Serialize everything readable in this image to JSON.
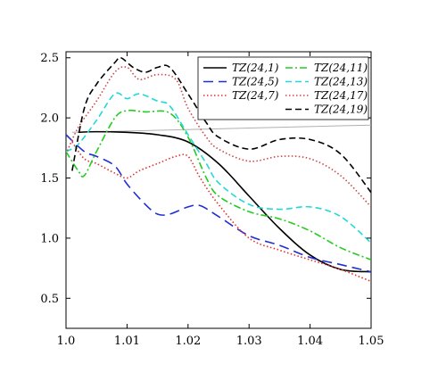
{
  "chart_data": {
    "type": "line",
    "title": "",
    "xlabel": "",
    "ylabel": "",
    "xlim": [
      1.0,
      1.05
    ],
    "ylim": [
      0.25,
      2.55
    ],
    "xticks": [
      1.0,
      1.01,
      1.02,
      1.03,
      1.04,
      1.05
    ],
    "xtick_labels": [
      "1.0",
      "1.01",
      "1.02",
      "1.03",
      "1.04",
      "1.05"
    ],
    "yticks": [
      0.5,
      1.0,
      1.5,
      2.0,
      2.5
    ],
    "ytick_labels": [
      "0.5",
      "1.0",
      "1.5",
      "2.0",
      "2.5"
    ],
    "grid": false,
    "legend_position": "top-right",
    "reference_line": {
      "x": [
        1.001,
        1.05
      ],
      "y": [
        1.88,
        1.94
      ],
      "color": "#b0b0b0"
    },
    "series": [
      {
        "name": "TZ(24,1)",
        "color": "#000000",
        "dash": "solid",
        "x": [
          1.002,
          1.005,
          1.01,
          1.015,
          1.02,
          1.025,
          1.03,
          1.035,
          1.04,
          1.045,
          1.05
        ],
        "y": [
          1.88,
          1.885,
          1.88,
          1.86,
          1.8,
          1.62,
          1.35,
          1.08,
          0.86,
          0.74,
          0.72
        ]
      },
      {
        "name": "TZ(24,5)",
        "color": "#1f2fd0",
        "dash": "long-dash",
        "x": [
          1.0,
          1.003,
          1.005,
          1.008,
          1.01,
          1.013,
          1.015,
          1.017,
          1.02,
          1.022,
          1.025,
          1.03,
          1.035,
          1.04,
          1.045,
          1.05
        ],
        "y": [
          1.86,
          1.72,
          1.68,
          1.6,
          1.45,
          1.28,
          1.2,
          1.2,
          1.26,
          1.27,
          1.18,
          1.02,
          0.94,
          0.84,
          0.78,
          0.72
        ]
      },
      {
        "name": "TZ(24,7)",
        "color": "#e03030",
        "dash": "dotted",
        "x": [
          1.001,
          1.003,
          1.005,
          1.008,
          1.01,
          1.012,
          1.015,
          1.018,
          1.02,
          1.022,
          1.025,
          1.03,
          1.035,
          1.04,
          1.045,
          1.05
        ],
        "y": [
          1.8,
          1.66,
          1.62,
          1.54,
          1.5,
          1.56,
          1.62,
          1.68,
          1.68,
          1.5,
          1.28,
          1.0,
          0.9,
          0.82,
          0.74,
          0.64
        ]
      },
      {
        "name": "TZ(24,11)",
        "color": "#22cc22",
        "dash": "dash-dot",
        "x": [
          1.0,
          1.002,
          1.003,
          1.005,
          1.008,
          1.01,
          1.013,
          1.017,
          1.02,
          1.023,
          1.025,
          1.03,
          1.035,
          1.04,
          1.045,
          1.05
        ],
        "y": [
          1.72,
          1.56,
          1.52,
          1.72,
          2.0,
          2.06,
          2.05,
          2.04,
          1.84,
          1.5,
          1.35,
          1.22,
          1.16,
          1.06,
          0.92,
          0.82
        ]
      },
      {
        "name": "TZ(24,13)",
        "color": "#22d8d8",
        "dash": "dashed",
        "x": [
          1.0,
          1.002,
          1.005,
          1.008,
          1.01,
          1.012,
          1.015,
          1.017,
          1.02,
          1.023,
          1.025,
          1.03,
          1.035,
          1.04,
          1.045,
          1.05
        ],
        "y": [
          1.72,
          1.78,
          1.98,
          2.2,
          2.16,
          2.2,
          2.14,
          2.1,
          1.86,
          1.62,
          1.46,
          1.28,
          1.24,
          1.26,
          1.18,
          0.96
        ]
      },
      {
        "name": "TZ(24,17)",
        "color": "#c84848",
        "dash": "dotted",
        "x": [
          1.0,
          1.002,
          1.005,
          1.008,
          1.01,
          1.012,
          1.015,
          1.018,
          1.02,
          1.023,
          1.025,
          1.03,
          1.035,
          1.04,
          1.045,
          1.05
        ],
        "y": [
          1.7,
          1.92,
          2.14,
          2.38,
          2.42,
          2.32,
          2.36,
          2.32,
          2.08,
          1.84,
          1.74,
          1.64,
          1.68,
          1.66,
          1.52,
          1.26
        ]
      },
      {
        "name": "TZ(24,19)",
        "color": "#000000",
        "dash": "dashed",
        "x": [
          1.001,
          1.003,
          1.005,
          1.008,
          1.009,
          1.011,
          1.013,
          1.015,
          1.017,
          1.02,
          1.023,
          1.025,
          1.03,
          1.035,
          1.04,
          1.045,
          1.05
        ],
        "y": [
          1.56,
          2.08,
          2.28,
          2.46,
          2.5,
          2.42,
          2.38,
          2.42,
          2.42,
          2.2,
          1.96,
          1.84,
          1.74,
          1.82,
          1.82,
          1.7,
          1.38
        ]
      }
    ]
  }
}
